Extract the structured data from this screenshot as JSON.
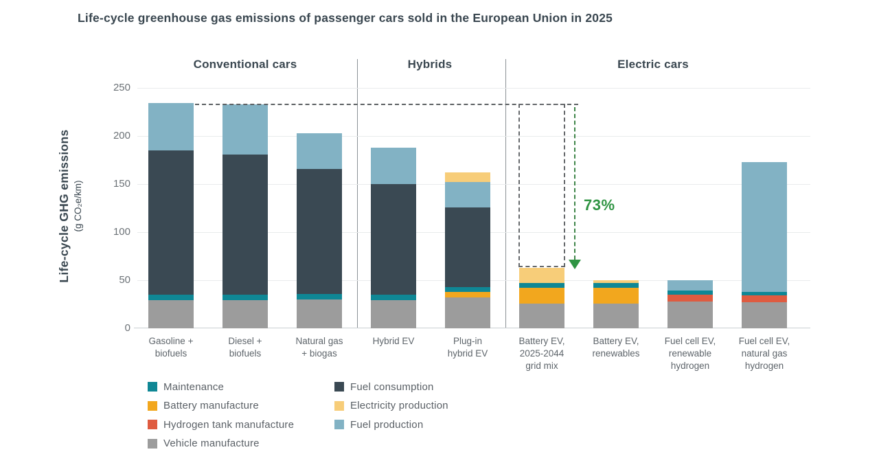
{
  "title": "Life-cycle greenhouse gas emissions of passenger cars sold in the European Union in 2025",
  "sections": [
    {
      "label": "Conventional cars"
    },
    {
      "label": "Hybrids"
    },
    {
      "label": "Electric cars"
    }
  ],
  "y_axis": {
    "title": "Life-cycle GHG emissions",
    "unit": "(g CO₂e/km)",
    "ticks": [
      0,
      50,
      100,
      150,
      200,
      250
    ]
  },
  "annotation": {
    "label": "73%",
    "color": "#2f9443"
  },
  "chart_data": {
    "type": "bar",
    "stacked": true,
    "title": "Life-cycle greenhouse gas emissions of passenger cars sold in the European Union in 2025",
    "ylabel": "Life-cycle GHG emissions (g CO2e/km)",
    "ylim": [
      0,
      250
    ],
    "grid": true,
    "categories": [
      "Gasoline +\nbiofuels",
      "Diesel +\nbiofuels",
      "Natural gas\n+ biogas",
      "Hybrid EV",
      "Plug-in\nhybrid EV",
      "Battery EV,\n2025-2044\ngrid mix",
      "Battery EV,\nrenewables",
      "Fuel cell EV,\nrenewable\nhydrogen",
      "Fuel cell EV,\nnatural gas\nhydrogen"
    ],
    "section_of_category": [
      0,
      0,
      0,
      1,
      1,
      2,
      2,
      2,
      2
    ],
    "series": [
      {
        "name": "Vehicle manufacture",
        "color": "#9c9c9c",
        "values": [
          29,
          29,
          30,
          29,
          32,
          26,
          26,
          28,
          27
        ]
      },
      {
        "name": "Battery manufacture",
        "color": "#f2a71e",
        "values": [
          0,
          0,
          0,
          0,
          6,
          16,
          16,
          0,
          0
        ]
      },
      {
        "name": "Hydrogen tank manufacture",
        "color": "#df5b40",
        "values": [
          0,
          0,
          0,
          0,
          0,
          0,
          0,
          7,
          7
        ]
      },
      {
        "name": "Maintenance",
        "color": "#0f8795",
        "values": [
          6,
          6,
          6,
          6,
          5,
          5,
          5,
          4,
          4
        ]
      },
      {
        "name": "Fuel consumption",
        "color": "#3a4953",
        "values": [
          150,
          146,
          130,
          115,
          83,
          0,
          0,
          0,
          0
        ]
      },
      {
        "name": "Fuel production",
        "color": "#82b2c4",
        "values": [
          49,
          52,
          37,
          38,
          26,
          0,
          0,
          11,
          135
        ]
      },
      {
        "name": "Electricity production",
        "color": "#f7cd79",
        "values": [
          0,
          0,
          0,
          0,
          10,
          16,
          3,
          0,
          0
        ]
      }
    ],
    "totals": [
      234,
      233,
      203,
      188,
      162,
      63,
      50,
      50,
      173
    ],
    "annotation_meaning": "73% reduction from conventional gasoline car (234) to battery EV on 2025-2044 grid mix (63)"
  },
  "legend": {
    "columns": [
      [
        "Maintenance",
        "Battery manufacture",
        "Hydrogen tank manufacture",
        "Vehicle manufacture"
      ],
      [
        "Fuel consumption",
        "Electricity production",
        "Fuel production"
      ]
    ]
  }
}
